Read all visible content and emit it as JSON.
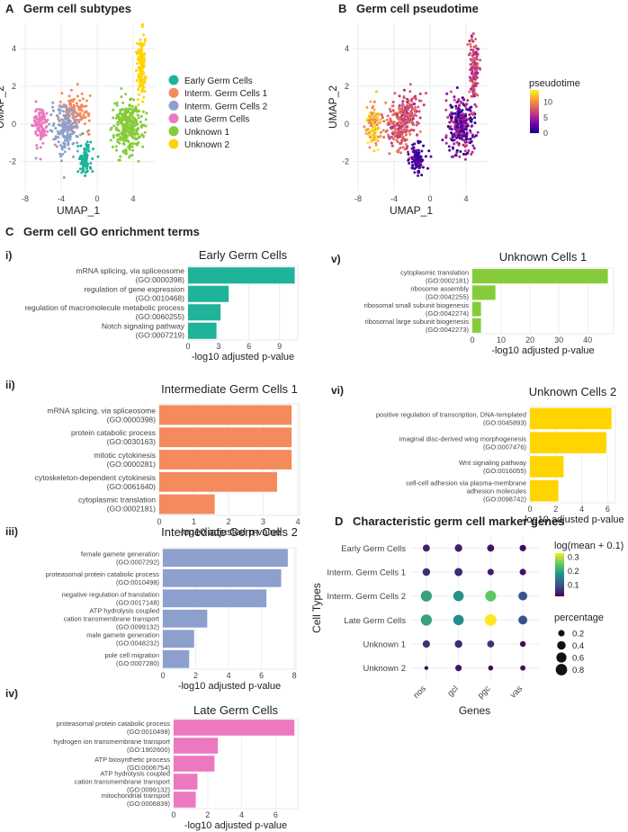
{
  "panels": {
    "A": {
      "letter": "A",
      "title": "Germ cell subtypes"
    },
    "B": {
      "letter": "B",
      "title": "Germ cell pseudotime"
    },
    "C": {
      "letter": "C",
      "title": "Germ cell GO enrichment terms"
    },
    "D": {
      "letter": "D",
      "title": "Characteristic germ cell marker genes"
    }
  },
  "chart_data": [
    {
      "id": "A",
      "type": "scatter",
      "title": "Germ cell subtypes",
      "xlabel": "UMAP_1",
      "ylabel": "UMAP_2",
      "xlim": [
        -8.6,
        6.4
      ],
      "ylim": [
        -3.6,
        5.4
      ],
      "xticks": [
        -8,
        -4,
        0,
        4
      ],
      "yticks": [
        -2,
        0,
        2,
        4
      ],
      "legend": [
        {
          "name": "Early Germ Cells",
          "color": "#1fb39a"
        },
        {
          "name": "Interm. Germ Cells 1",
          "color": "#f58a5c"
        },
        {
          "name": "Interm. Germ Cells 2",
          "color": "#8c9fcd"
        },
        {
          "name": "Late Germ Cells",
          "color": "#ec79bf"
        },
        {
          "name": "Unknown 1",
          "color": "#86cc3a"
        },
        {
          "name": "Unknown 2",
          "color": "#ffd400"
        }
      ],
      "clusters": [
        {
          "name": "Early Germ Cells",
          "cx": -1.4,
          "cy": -1.9,
          "sx": 0.55,
          "sy": 0.6,
          "n": 100
        },
        {
          "name": "Interm. Germ Cells 1",
          "cx": -2.4,
          "cy": 0.6,
          "sx": 1.2,
          "sy": 0.7,
          "n": 130
        },
        {
          "name": "Interm. Germ Cells 2",
          "cx": -3.5,
          "cy": -0.3,
          "sx": 1.1,
          "sy": 0.9,
          "n": 160
        },
        {
          "name": "Late Germ Cells",
          "cx": -6.3,
          "cy": -0.1,
          "sx": 0.55,
          "sy": 0.8,
          "n": 110
        },
        {
          "name": "Unknown 1",
          "cx": 3.4,
          "cy": -0.1,
          "sx": 1.1,
          "sy": 1.0,
          "n": 300
        },
        {
          "name": "Unknown 2",
          "cx": 4.9,
          "cy": 3.0,
          "sx": 0.35,
          "sy": 1.2,
          "n": 140
        }
      ]
    },
    {
      "id": "B",
      "type": "scatter",
      "title": "Germ cell pseudotime",
      "xlabel": "UMAP_1",
      "ylabel": "UMAP_2",
      "xlim": [
        -8.6,
        6.4
      ],
      "ylim": [
        -3.6,
        5.4
      ],
      "xticks": [
        -8,
        -4,
        0,
        4
      ],
      "yticks": [
        -2,
        0,
        2,
        4
      ],
      "colorbar": {
        "title": "pseudotime",
        "range": [
          0,
          14
        ],
        "ticks": [
          0,
          5,
          10
        ]
      },
      "clusters": [
        {
          "cx": -1.4,
          "cy": -1.9,
          "sx": 0.55,
          "sy": 0.6,
          "n": 100,
          "t": [
            0.5,
            3
          ]
        },
        {
          "cx": -2.4,
          "cy": 0.6,
          "sx": 1.2,
          "sy": 0.7,
          "n": 130,
          "t": [
            5,
            9
          ]
        },
        {
          "cx": -3.5,
          "cy": -0.3,
          "sx": 1.1,
          "sy": 0.9,
          "n": 160,
          "t": [
            6,
            10
          ]
        },
        {
          "cx": -6.3,
          "cy": -0.1,
          "sx": 0.55,
          "sy": 0.8,
          "n": 110,
          "t": [
            9,
            14
          ]
        },
        {
          "cx": 3.4,
          "cy": -0.1,
          "sx": 1.1,
          "sy": 1.0,
          "n": 300,
          "t": [
            0,
            7
          ]
        },
        {
          "cx": 4.9,
          "cy": 3.0,
          "sx": 0.35,
          "sy": 1.2,
          "n": 140,
          "t": [
            5,
            9
          ]
        }
      ]
    },
    {
      "id": "C-i",
      "roman": "i)",
      "type": "bar",
      "title": "Early Germ Cells",
      "color": "#1fb39a",
      "xlabel": "-log10 adjusted p-value",
      "xlim": [
        0,
        10.8
      ],
      "xticks": [
        0,
        3,
        6,
        9
      ],
      "categories": [
        [
          "mRNA splicing, via spliceosome",
          "(GO:0000398)"
        ],
        [
          "regulation of gene expression",
          "(GO:0010468)"
        ],
        [
          "regulation of macromolecule metabolic process",
          "(GO:0060255)"
        ],
        [
          "Notch signaling pathway",
          "(GO:0007219)"
        ]
      ],
      "values": [
        10.5,
        4.0,
        3.2,
        2.8
      ]
    },
    {
      "id": "C-ii",
      "roman": "ii)",
      "type": "bar",
      "title": "Intermediate Germ Cells 1",
      "color": "#f58a5c",
      "xlabel": "-log10 adjusted p-value",
      "xlim": [
        0,
        4.05
      ],
      "xticks": [
        0,
        1,
        2,
        3,
        4
      ],
      "categories": [
        [
          "mRNA splicing, via spliceosome",
          "(GO:0000398)"
        ],
        [
          "protein catabolic process",
          "(GO:0030163)"
        ],
        [
          "mitotic cytokinesis",
          "(GO:0000281)"
        ],
        [
          "cytoskeleton-dependent cytokinesis",
          "(GO:0061640)"
        ],
        [
          "cytoplasmic translation",
          "(GO:0002181)"
        ]
      ],
      "values": [
        3.82,
        3.82,
        3.82,
        3.4,
        1.6
      ]
    },
    {
      "id": "C-iii",
      "roman": "iii)",
      "type": "bar",
      "title": "Intermediate Germ Cells 2",
      "color": "#8c9fcd",
      "xlabel": "-log10 adjusted p-value",
      "xlim": [
        0,
        8.1
      ],
      "xticks": [
        0,
        2,
        4,
        6,
        8
      ],
      "categories": [
        [
          "female gamete generation",
          "(GO:0007292)"
        ],
        [
          "proteasomal protein catabolic process",
          "(GO:0010498)"
        ],
        [
          "negative regulation of translation",
          "(GO:0017148)"
        ],
        [
          "ATP hydrolysis coupled",
          "cation transmembrane transport",
          "(GO:0099132)"
        ],
        [
          "male gamete generation",
          "(GO:0048232)"
        ],
        [
          "pole cell migration",
          "(GO:0007280)"
        ]
      ],
      "values": [
        7.6,
        7.2,
        6.3,
        2.7,
        1.9,
        1.6
      ]
    },
    {
      "id": "C-iv",
      "roman": "iv)",
      "type": "bar",
      "title": "Late Germ Cells",
      "color": "#ec79bf",
      "xlabel": "-log10 adjusted p-value",
      "xlim": [
        0,
        7.3
      ],
      "xticks": [
        0,
        2,
        4,
        6
      ],
      "categories": [
        [
          "proteasomal protein catabolic process",
          "(GO:0010498)"
        ],
        [
          "hydrogen ion transmembrane transport",
          "(GO:1902600)"
        ],
        [
          "ATP biosynthetic process",
          "(GO:0006754)"
        ],
        [
          "ATP hydrolysis coupled",
          "cation transmembrane transport",
          "(GO:0099132)"
        ],
        [
          "mitochondrial transport",
          "(GO:0006839)"
        ]
      ],
      "values": [
        7.1,
        2.6,
        2.4,
        1.4,
        1.3
      ]
    },
    {
      "id": "C-v",
      "roman": "v)",
      "type": "bar",
      "title": "Unknown Cells 1",
      "color": "#86cc3a",
      "xlabel": "-log10 adjusted p-value",
      "xlim": [
        0,
        49
      ],
      "xticks": [
        0,
        10,
        20,
        30,
        40
      ],
      "categories": [
        [
          "cytoplasmic translation",
          "(GO:0002181)"
        ],
        [
          "ribosome assembly",
          "(GO:0042255)"
        ],
        [
          "ribosomal small subunit biogenesis",
          "(GO:0042274)"
        ],
        [
          "ribosomal large subunit biogenesis",
          "(GO:0042273)"
        ]
      ],
      "values": [
        47,
        8,
        3,
        3
      ]
    },
    {
      "id": "C-vi",
      "roman": "vi)",
      "type": "bar",
      "title": "Unknown Cells 2",
      "color": "#ffd400",
      "xlabel": "-log10 adjusted p-value",
      "xlim": [
        0,
        6.6
      ],
      "xticks": [
        0,
        2,
        4,
        6
      ],
      "categories": [
        [
          "positive regulation of transcription, DNA-templated",
          "(GO:0045893)"
        ],
        [
          "imaginal disc-derived wing morphogenesis",
          "(GO:0007476)"
        ],
        [
          "Wnt signaling pathway",
          "(GO:0016055)"
        ],
        [
          "cell-cell adhesion via plasma-membrane",
          "adhesion molecules",
          "(GO:0098742)"
        ]
      ],
      "values": [
        6.3,
        5.9,
        2.6,
        2.2
      ]
    },
    {
      "id": "D",
      "type": "dotplot",
      "title": "Characteristic germ cell marker genes",
      "xlabel": "Genes",
      "ylabel": "Cell Types",
      "genes": [
        "nos",
        "gcl",
        "pgc",
        "vas"
      ],
      "cell_types": [
        "Early Germ Cells",
        "Interm. Germ Cells 1",
        "Interm. Germ Cells 2",
        "Late Germ Cells",
        "Unknown 1",
        "Unknown 2"
      ],
      "mean": [
        [
          0.05,
          0.05,
          0.04,
          0.03
        ],
        [
          0.06,
          0.06,
          0.05,
          0.04
        ],
        [
          0.2,
          0.18,
          0.25,
          0.1
        ],
        [
          0.2,
          0.17,
          0.33,
          0.1
        ],
        [
          0.07,
          0.06,
          0.07,
          0.03
        ],
        [
          0.03,
          0.04,
          0.02,
          0.03
        ]
      ],
      "percentage": [
        [
          0.25,
          0.3,
          0.25,
          0.2
        ],
        [
          0.3,
          0.35,
          0.2,
          0.2
        ],
        [
          0.75,
          0.65,
          0.7,
          0.45
        ],
        [
          0.75,
          0.65,
          0.85,
          0.45
        ],
        [
          0.28,
          0.3,
          0.25,
          0.15
        ],
        [
          0.05,
          0.2,
          0.1,
          0.12
        ]
      ],
      "color_legend": {
        "title": "log(mean + 0.1)",
        "ticks": [
          0.1,
          0.2,
          0.3
        ],
        "range": [
          0.02,
          0.33
        ]
      },
      "size_legend": {
        "title": "percentage",
        "ticks": [
          0.2,
          0.4,
          0.6,
          0.8
        ]
      }
    }
  ]
}
